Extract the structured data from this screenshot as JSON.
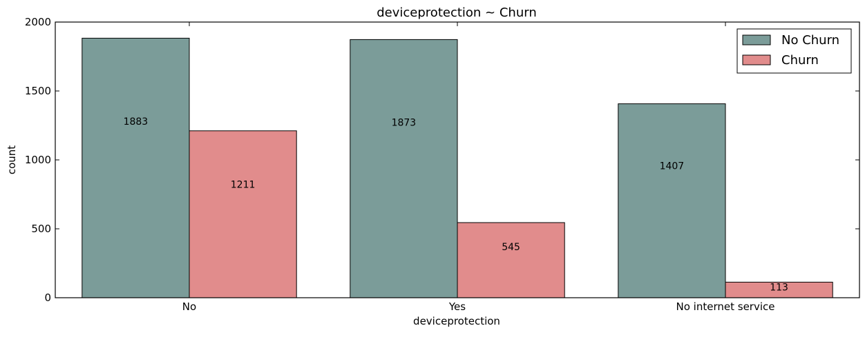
{
  "chart_data": {
    "type": "bar",
    "title": "deviceprotection ~ Churn",
    "xlabel": "deviceprotection",
    "ylabel": "count",
    "categories": [
      "No",
      "Yes",
      "No internet service"
    ],
    "series": [
      {
        "name": "No Churn",
        "values": [
          1883,
          1873,
          1407
        ],
        "color": "#7b9c99"
      },
      {
        "name": "Churn",
        "values": [
          1211,
          545,
          113
        ],
        "color": "#e18c8c"
      }
    ],
    "ylim": [
      0,
      2000
    ],
    "yticks": [
      0,
      500,
      1000,
      1500,
      2000
    ],
    "grid": false,
    "legend_position": "top-right"
  }
}
